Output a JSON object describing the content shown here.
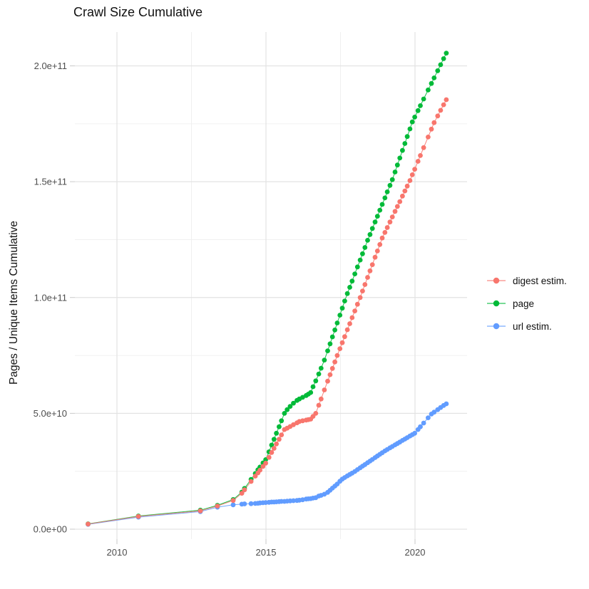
{
  "chart_data": {
    "type": "line",
    "title": "Crawl Size Cumulative",
    "xlabel": "",
    "ylabel": "Pages / Unique Items Cumulative",
    "values_unit": "billions (1e9) of pages / unique items",
    "xlim": [
      2008.59,
      2021.75
    ],
    "ylim_billions": [
      -4.3,
      214.6
    ],
    "grid": "major and minor, light gray on white",
    "legend_position": "right",
    "x_axis": {
      "major_ticks": [
        {
          "year": 2010,
          "label": "2010"
        },
        {
          "year": 2015,
          "label": "2015"
        },
        {
          "year": 2020,
          "label": "2020"
        }
      ],
      "minor_ticks": [
        2012.5,
        2017.5
      ]
    },
    "y_axis": {
      "major_ticks": [
        {
          "v": 0,
          "label": "0.0e+00"
        },
        {
          "v": 50,
          "label": "5.0e+10"
        },
        {
          "v": 100,
          "label": "1.0e+11"
        },
        {
          "v": 150,
          "label": "1.5e+11"
        },
        {
          "v": 200,
          "label": "2.0e+11"
        }
      ],
      "minor_ticks": [
        25,
        75,
        125,
        175
      ]
    },
    "legend": {
      "items": [
        {
          "label": "digest estim.",
          "color": "#F8766D"
        },
        {
          "label": "page",
          "color": "#00BA38"
        },
        {
          "label": "url estim.",
          "color": "#619CFF"
        }
      ]
    },
    "series": [
      {
        "name": "url estim.",
        "color": "#619CFF",
        "points": [
          [
            2009.03,
            2.1
          ],
          [
            2010.72,
            5.2
          ],
          [
            2012.8,
            7.6
          ],
          [
            2013.37,
            9.5
          ],
          [
            2013.9,
            10.5
          ],
          [
            2014.19,
            10.8
          ],
          [
            2014.28,
            10.9
          ],
          [
            2014.5,
            11.0
          ],
          [
            2014.64,
            11.1
          ],
          [
            2014.73,
            11.2
          ],
          [
            2014.8,
            11.3
          ],
          [
            2014.9,
            11.4
          ],
          [
            2014.99,
            11.5
          ],
          [
            2015.1,
            11.6
          ],
          [
            2015.19,
            11.7
          ],
          [
            2015.27,
            11.7
          ],
          [
            2015.35,
            11.8
          ],
          [
            2015.44,
            11.9
          ],
          [
            2015.52,
            12.0
          ],
          [
            2015.62,
            12.0
          ],
          [
            2015.71,
            12.1
          ],
          [
            2015.81,
            12.2
          ],
          [
            2015.92,
            12.3
          ],
          [
            2016.04,
            12.4
          ],
          [
            2016.12,
            12.5
          ],
          [
            2016.23,
            12.7
          ],
          [
            2016.35,
            13.0
          ],
          [
            2016.42,
            13.1
          ],
          [
            2016.5,
            13.2
          ],
          [
            2016.58,
            13.4
          ],
          [
            2016.67,
            13.6
          ],
          [
            2016.77,
            14.3
          ],
          [
            2016.85,
            14.6
          ],
          [
            2016.96,
            15.1
          ],
          [
            2017.07,
            15.9
          ],
          [
            2017.15,
            16.8
          ],
          [
            2017.23,
            17.7
          ],
          [
            2017.31,
            18.6
          ],
          [
            2017.39,
            19.5
          ],
          [
            2017.48,
            20.7
          ],
          [
            2017.56,
            21.6
          ],
          [
            2017.64,
            22.3
          ],
          [
            2017.73,
            23.0
          ],
          [
            2017.81,
            23.6
          ],
          [
            2017.89,
            24.2
          ],
          [
            2017.98,
            24.9
          ],
          [
            2018.07,
            25.7
          ],
          [
            2018.16,
            26.5
          ],
          [
            2018.24,
            27.2
          ],
          [
            2018.32,
            27.9
          ],
          [
            2018.41,
            28.7
          ],
          [
            2018.49,
            29.4
          ],
          [
            2018.57,
            30.1
          ],
          [
            2018.66,
            30.9
          ],
          [
            2018.74,
            31.6
          ],
          [
            2018.82,
            32.3
          ],
          [
            2018.9,
            33.0
          ],
          [
            2018.99,
            33.8
          ],
          [
            2019.07,
            34.4
          ],
          [
            2019.16,
            35.1
          ],
          [
            2019.24,
            35.7
          ],
          [
            2019.33,
            36.4
          ],
          [
            2019.41,
            37.0
          ],
          [
            2019.49,
            37.6
          ],
          [
            2019.58,
            38.3
          ],
          [
            2019.66,
            38.9
          ],
          [
            2019.74,
            39.5
          ],
          [
            2019.83,
            40.2
          ],
          [
            2019.91,
            40.8
          ],
          [
            2019.99,
            41.4
          ],
          [
            2020.1,
            43.0
          ],
          [
            2020.18,
            44.2
          ],
          [
            2020.29,
            45.8
          ],
          [
            2020.44,
            48.1
          ],
          [
            2020.55,
            49.7
          ],
          [
            2020.64,
            50.5
          ],
          [
            2020.76,
            51.6
          ],
          [
            2020.86,
            52.5
          ],
          [
            2020.96,
            53.4
          ],
          [
            2021.05,
            54.1
          ]
        ]
      },
      {
        "name": "page",
        "color": "#00BA38",
        "points": [
          [
            2009.03,
            2.3
          ],
          [
            2010.72,
            5.7
          ],
          [
            2012.8,
            8.2
          ],
          [
            2013.37,
            10.3
          ],
          [
            2013.9,
            12.8
          ],
          [
            2014.19,
            16.0
          ],
          [
            2014.28,
            17.6
          ],
          [
            2014.5,
            21.5
          ],
          [
            2014.64,
            24.0
          ],
          [
            2014.73,
            25.6
          ],
          [
            2014.8,
            26.8
          ],
          [
            2014.9,
            28.6
          ],
          [
            2014.99,
            30.0
          ],
          [
            2015.1,
            33.4
          ],
          [
            2015.19,
            36.3
          ],
          [
            2015.27,
            38.8
          ],
          [
            2015.35,
            41.4
          ],
          [
            2015.44,
            44.2
          ],
          [
            2015.52,
            46.8
          ],
          [
            2015.62,
            50.0
          ],
          [
            2015.71,
            51.6
          ],
          [
            2015.81,
            53.0
          ],
          [
            2015.92,
            54.4
          ],
          [
            2016.04,
            55.6
          ],
          [
            2016.12,
            56.2
          ],
          [
            2016.23,
            56.9
          ],
          [
            2016.35,
            57.7
          ],
          [
            2016.42,
            58.3
          ],
          [
            2016.5,
            59.0
          ],
          [
            2016.58,
            61.5
          ],
          [
            2016.67,
            64.0
          ],
          [
            2016.77,
            67.0
          ],
          [
            2016.85,
            69.5
          ],
          [
            2016.96,
            73.0
          ],
          [
            2017.07,
            77.0
          ],
          [
            2017.15,
            80.0
          ],
          [
            2017.23,
            83.0
          ],
          [
            2017.31,
            86.0
          ],
          [
            2017.39,
            89.0
          ],
          [
            2017.48,
            92.4
          ],
          [
            2017.56,
            95.4
          ],
          [
            2017.64,
            98.5
          ],
          [
            2017.73,
            101.7
          ],
          [
            2017.81,
            104.4
          ],
          [
            2017.89,
            107.1
          ],
          [
            2017.98,
            110.2
          ],
          [
            2018.07,
            113.2
          ],
          [
            2018.16,
            116.2
          ],
          [
            2018.24,
            118.9
          ],
          [
            2018.32,
            121.6
          ],
          [
            2018.41,
            124.7
          ],
          [
            2018.49,
            127.2
          ],
          [
            2018.57,
            129.8
          ],
          [
            2018.66,
            132.6
          ],
          [
            2018.74,
            135.1
          ],
          [
            2018.82,
            137.7
          ],
          [
            2018.9,
            140.2
          ],
          [
            2018.99,
            143.0
          ],
          [
            2019.07,
            145.6
          ],
          [
            2019.16,
            148.4
          ],
          [
            2019.24,
            150.9
          ],
          [
            2019.33,
            154.2
          ],
          [
            2019.41,
            157.2
          ],
          [
            2019.49,
            160.2
          ],
          [
            2019.58,
            163.5
          ],
          [
            2019.66,
            166.5
          ],
          [
            2019.74,
            169.5
          ],
          [
            2019.83,
            172.8
          ],
          [
            2019.91,
            175.8
          ],
          [
            2019.99,
            177.9
          ],
          [
            2020.1,
            180.7
          ],
          [
            2020.18,
            182.8
          ],
          [
            2020.29,
            185.7
          ],
          [
            2020.44,
            189.6
          ],
          [
            2020.55,
            192.4
          ],
          [
            2020.64,
            194.8
          ],
          [
            2020.76,
            197.9
          ],
          [
            2020.86,
            200.5
          ],
          [
            2020.96,
            203.1
          ],
          [
            2021.05,
            205.5
          ]
        ]
      },
      {
        "name": "digest estim.",
        "color": "#F8766D",
        "points": [
          [
            2009.03,
            2.2
          ],
          [
            2010.72,
            5.5
          ],
          [
            2012.8,
            7.9
          ],
          [
            2013.37,
            10.0
          ],
          [
            2013.9,
            12.4
          ],
          [
            2014.19,
            15.5
          ],
          [
            2014.28,
            17.0
          ],
          [
            2014.5,
            20.6
          ],
          [
            2014.64,
            22.9
          ],
          [
            2014.73,
            24.3
          ],
          [
            2014.8,
            25.5
          ],
          [
            2014.9,
            27.1
          ],
          [
            2014.99,
            28.5
          ],
          [
            2015.1,
            31.0
          ],
          [
            2015.19,
            33.1
          ],
          [
            2015.27,
            34.9
          ],
          [
            2015.35,
            36.8
          ],
          [
            2015.44,
            38.8
          ],
          [
            2015.52,
            40.7
          ],
          [
            2015.62,
            43.0
          ],
          [
            2015.71,
            43.6
          ],
          [
            2015.81,
            44.3
          ],
          [
            2015.92,
            45.1
          ],
          [
            2016.04,
            45.9
          ],
          [
            2016.12,
            46.5
          ],
          [
            2016.23,
            46.8
          ],
          [
            2016.35,
            47.1
          ],
          [
            2016.42,
            47.3
          ],
          [
            2016.5,
            47.5
          ],
          [
            2016.58,
            48.7
          ],
          [
            2016.67,
            50.0
          ],
          [
            2016.77,
            53.5
          ],
          [
            2016.85,
            56.2
          ],
          [
            2016.96,
            60.1
          ],
          [
            2017.07,
            63.9
          ],
          [
            2017.15,
            66.7
          ],
          [
            2017.23,
            69.4
          ],
          [
            2017.31,
            72.2
          ],
          [
            2017.39,
            75.0
          ],
          [
            2017.48,
            77.9
          ],
          [
            2017.56,
            80.5
          ],
          [
            2017.64,
            83.1
          ],
          [
            2017.73,
            86.1
          ],
          [
            2017.81,
            88.7
          ],
          [
            2017.89,
            91.3
          ],
          [
            2017.98,
            94.2
          ],
          [
            2018.07,
            97.1
          ],
          [
            2018.16,
            100.0
          ],
          [
            2018.24,
            102.8
          ],
          [
            2018.32,
            105.6
          ],
          [
            2018.41,
            108.7
          ],
          [
            2018.49,
            111.5
          ],
          [
            2018.57,
            114.2
          ],
          [
            2018.66,
            117.4
          ],
          [
            2018.74,
            120.1
          ],
          [
            2018.82,
            122.9
          ],
          [
            2018.9,
            125.7
          ],
          [
            2018.99,
            128.1
          ],
          [
            2019.07,
            130.2
          ],
          [
            2019.16,
            132.6
          ],
          [
            2019.24,
            134.8
          ],
          [
            2019.33,
            137.2
          ],
          [
            2019.41,
            139.3
          ],
          [
            2019.49,
            141.4
          ],
          [
            2019.58,
            143.8
          ],
          [
            2019.66,
            146.0
          ],
          [
            2019.74,
            148.1
          ],
          [
            2019.83,
            150.5
          ],
          [
            2019.91,
            153.0
          ],
          [
            2019.99,
            155.4
          ],
          [
            2020.1,
            158.8
          ],
          [
            2020.18,
            161.3
          ],
          [
            2020.29,
            164.7
          ],
          [
            2020.44,
            169.3
          ],
          [
            2020.55,
            172.7
          ],
          [
            2020.64,
            175.5
          ],
          [
            2020.76,
            178.4
          ],
          [
            2020.86,
            180.8
          ],
          [
            2020.96,
            183.2
          ],
          [
            2021.05,
            185.4
          ]
        ]
      }
    ]
  }
}
